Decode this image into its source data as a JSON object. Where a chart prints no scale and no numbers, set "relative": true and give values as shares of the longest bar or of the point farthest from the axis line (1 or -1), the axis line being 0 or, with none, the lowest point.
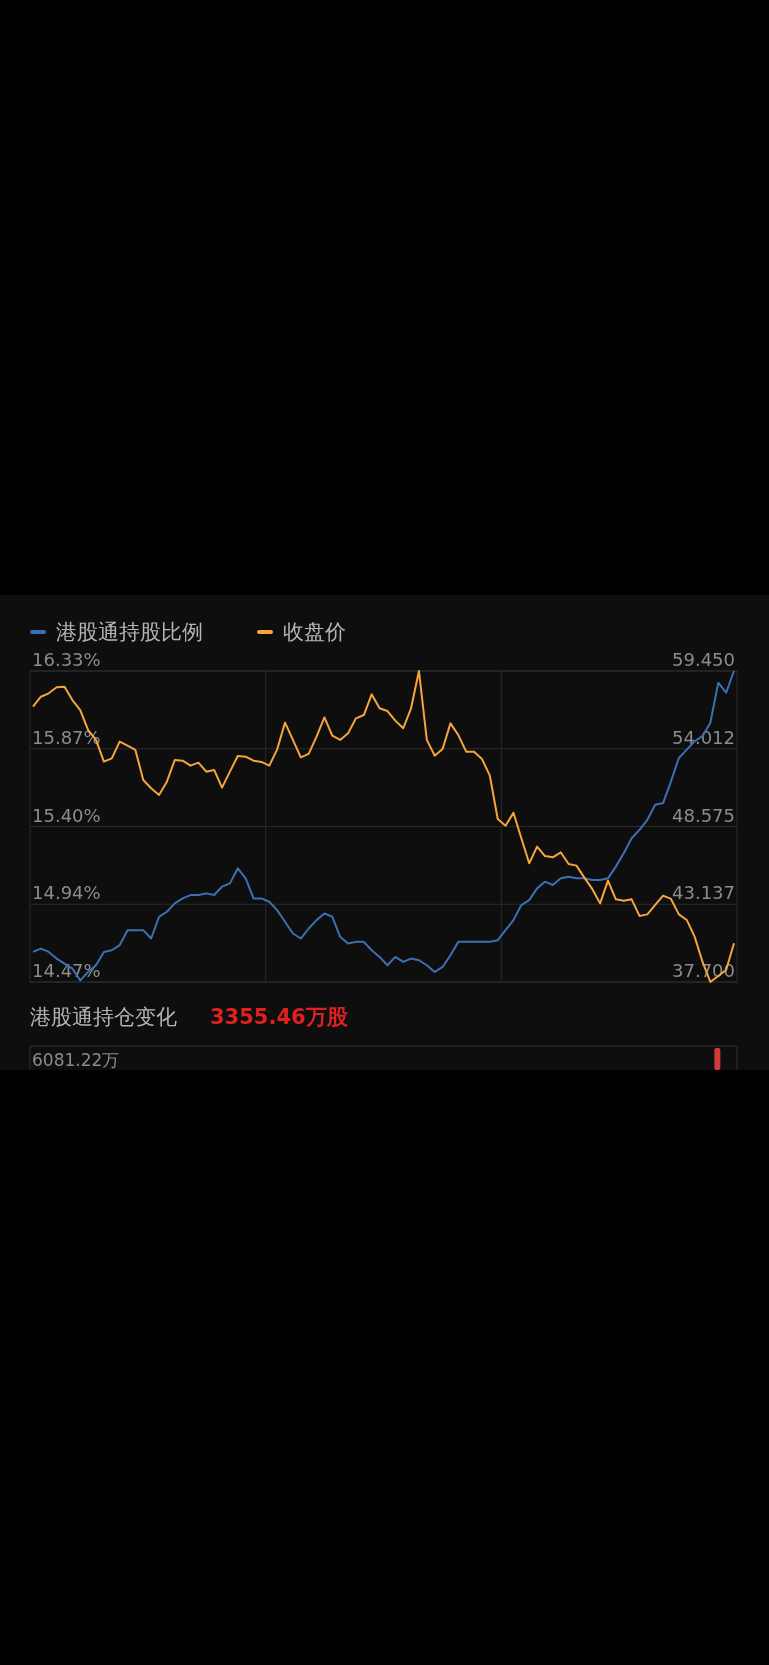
{
  "chart_data": [
    {
      "type": "line",
      "categories": [
        null,
        null,
        null,
        null,
        null,
        null,
        null,
        null,
        null,
        null,
        null,
        null,
        null,
        null,
        null,
        null,
        null,
        null,
        null,
        null,
        null,
        null,
        null,
        null,
        null,
        null,
        null,
        null,
        null,
        null,
        null,
        null,
        null,
        null,
        null,
        null,
        null,
        null,
        null,
        null,
        null,
        null,
        null,
        null,
        null,
        null,
        null,
        null,
        null,
        null,
        null,
        null,
        null,
        null,
        null,
        null,
        null,
        null,
        null,
        null,
        null,
        null,
        null,
        null,
        null,
        null,
        null,
        null,
        null,
        null,
        null,
        null,
        null,
        null,
        null,
        null,
        null,
        null,
        null,
        null,
        null,
        null,
        null,
        null,
        null,
        null,
        null,
        null,
        null,
        null
      ],
      "series": [
        {
          "name": "港股通持股比例",
          "color": "#3d70b2",
          "axis": "y",
          "values": [
            14.65,
            14.67,
            14.65,
            14.61,
            14.58,
            14.55,
            14.48,
            14.53,
            14.57,
            14.65,
            14.66,
            14.69,
            14.78,
            14.78,
            14.78,
            14.73,
            14.86,
            14.89,
            14.94,
            14.97,
            14.99,
            14.99,
            15.0,
            14.99,
            15.04,
            15.06,
            15.15,
            15.09,
            14.97,
            14.97,
            14.95,
            14.9,
            14.83,
            14.76,
            14.73,
            14.79,
            14.84,
            14.88,
            14.86,
            14.74,
            14.7,
            14.71,
            14.71,
            14.66,
            14.62,
            14.57,
            14.62,
            14.59,
            14.61,
            14.6,
            14.57,
            14.53,
            14.56,
            14.63,
            14.71,
            14.71,
            14.71,
            14.71,
            14.71,
            14.72,
            14.78,
            14.84,
            14.93,
            14.96,
            15.03,
            15.07,
            15.05,
            15.09,
            15.1,
            15.09,
            15.09,
            15.08,
            15.08,
            15.09,
            15.16,
            15.24,
            15.33,
            15.38,
            15.44,
            15.53,
            15.54,
            15.67,
            15.81,
            15.86,
            15.91,
            15.94,
            16.02,
            16.26,
            16.2,
            16.33
          ]
        },
        {
          "name": "收盘价",
          "color": "#f5a53c",
          "axis": "y2",
          "values": [
            56.96,
            57.65,
            57.89,
            58.31,
            58.35,
            57.42,
            56.72,
            55.32,
            54.63,
            53.11,
            53.34,
            54.51,
            54.23,
            53.93,
            51.83,
            51.25,
            50.78,
            51.71,
            53.23,
            53.18,
            52.83,
            53.04,
            52.41,
            52.53,
            51.29,
            52.41,
            53.51,
            53.46,
            53.18,
            53.09,
            52.83,
            53.97,
            55.84,
            54.63,
            53.41,
            53.65,
            54.86,
            56.21,
            54.93,
            54.63,
            55.09,
            56.14,
            56.37,
            57.82,
            56.84,
            56.65,
            55.98,
            55.44,
            56.84,
            59.45,
            54.63,
            53.53,
            54.0,
            55.79,
            54.97,
            53.81,
            53.81,
            53.3,
            52.13,
            49.1,
            48.63,
            49.54,
            47.75,
            46.0,
            47.17,
            46.51,
            46.42,
            46.77,
            45.95,
            45.84,
            45.0,
            44.21,
            43.2,
            44.79,
            43.48,
            43.39,
            43.48,
            42.32,
            42.43,
            43.09,
            43.74,
            43.51,
            42.43,
            42.04,
            40.87,
            39.12,
            37.7,
            38.12,
            38.54,
            40.41
          ]
        }
      ],
      "ylim": [
        14.47,
        16.33
      ],
      "yticks": [
        {
          "value": 14.47,
          "label": "14.47%"
        },
        {
          "value": 14.935,
          "label": "14.94%"
        },
        {
          "value": 15.4,
          "label": "15.40%"
        },
        {
          "value": 15.865,
          "label": "15.87%"
        },
        {
          "value": 16.33,
          "label": "16.33%"
        }
      ],
      "y2lim": [
        37.7,
        59.45
      ],
      "y2ticks": [
        {
          "value": 37.7,
          "label": "37.700"
        },
        {
          "value": 43.1375,
          "label": "43.137"
        },
        {
          "value": 48.575,
          "label": "48.575"
        },
        {
          "value": 54.0125,
          "label": "54.012"
        },
        {
          "value": 59.45,
          "label": "59.450"
        }
      ],
      "grid": true,
      "legend": "top left",
      "tick_labels": "y"
    },
    {
      "type": "bar",
      "title": "港股通持仓变化",
      "subtitle": "3355.46万股",
      "relative": true,
      "annotations": [
        "6081.22万"
      ],
      "categories": [
        null,
        null,
        null,
        null,
        null,
        null,
        null,
        null,
        null,
        null,
        null,
        null,
        null,
        null,
        null,
        null,
        null,
        null,
        null,
        null,
        null,
        null,
        null,
        null,
        null,
        null,
        null,
        null,
        null,
        null,
        null,
        null,
        null,
        null,
        null,
        null,
        null,
        null,
        null,
        null,
        null,
        null,
        null,
        null,
        null,
        null,
        null,
        null,
        null,
        null,
        null,
        null,
        null,
        null,
        null,
        null,
        null,
        null,
        null,
        null,
        null,
        null,
        null,
        null,
        null,
        null,
        null,
        null,
        null,
        null,
        null,
        null,
        null,
        null,
        null,
        null,
        null,
        null,
        null,
        null,
        null,
        null,
        null,
        null,
        null,
        null,
        null,
        null,
        null,
        null
      ],
      "values": [
        null,
        null,
        null,
        null,
        null,
        null,
        null,
        null,
        null,
        null,
        null,
        null,
        null,
        null,
        null,
        null,
        null,
        null,
        null,
        null,
        null,
        null,
        null,
        null,
        null,
        null,
        null,
        null,
        null,
        null,
        null,
        null,
        null,
        null,
        null,
        null,
        null,
        null,
        null,
        null,
        null,
        null,
        null,
        null,
        null,
        null,
        null,
        null,
        null,
        null,
        null,
        null,
        null,
        null,
        null,
        null,
        null,
        null,
        null,
        null,
        null,
        null,
        null,
        null,
        null,
        null,
        null,
        null,
        null,
        null,
        null,
        null,
        null,
        null,
        null,
        null,
        null,
        null,
        null,
        null,
        null,
        null,
        null,
        null,
        null,
        null,
        null,
        1,
        null,
        null
      ],
      "color": "#d03a3a"
    }
  ]
}
